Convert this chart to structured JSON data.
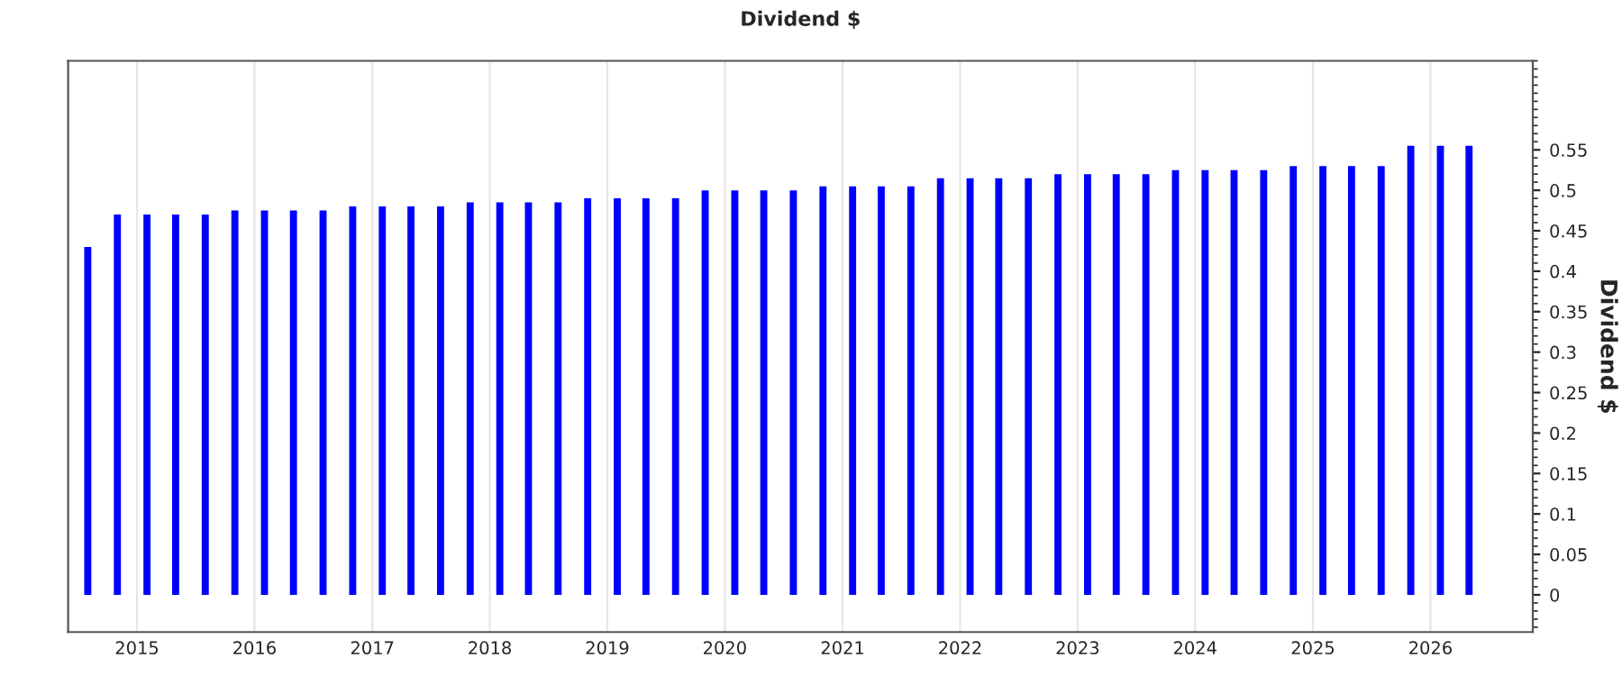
{
  "chart_data": {
    "type": "bar",
    "title": "Dividend $",
    "ylabel": "Dividend $",
    "color": "#0000ff",
    "x": [
      "2014-08",
      "2014-11",
      "2015-02",
      "2015-05",
      "2015-08",
      "2015-11",
      "2016-02",
      "2016-05",
      "2016-08",
      "2016-11",
      "2017-02",
      "2017-05",
      "2017-08",
      "2017-11",
      "2018-02",
      "2018-05",
      "2018-08",
      "2018-11",
      "2019-02",
      "2019-05",
      "2019-08",
      "2019-11",
      "2020-02",
      "2020-05",
      "2020-08",
      "2020-11",
      "2021-02",
      "2021-05",
      "2021-08",
      "2021-11",
      "2022-02",
      "2022-05",
      "2022-08",
      "2022-11",
      "2023-02",
      "2023-05",
      "2023-08",
      "2023-11",
      "2024-02",
      "2024-05",
      "2024-08",
      "2024-11",
      "2025-02",
      "2025-05",
      "2025-08",
      "2025-11",
      "2026-02",
      "2026-05"
    ],
    "values": [
      0.43,
      0.47,
      0.47,
      0.47,
      0.47,
      0.475,
      0.475,
      0.475,
      0.475,
      0.48,
      0.48,
      0.48,
      0.48,
      0.485,
      0.485,
      0.485,
      0.485,
      0.49,
      0.49,
      0.49,
      0.49,
      0.5,
      0.5,
      0.5,
      0.5,
      0.505,
      0.505,
      0.505,
      0.505,
      0.515,
      0.515,
      0.515,
      0.515,
      0.52,
      0.52,
      0.52,
      0.52,
      0.525,
      0.525,
      0.525,
      0.525,
      0.53,
      0.53,
      0.53,
      0.53,
      0.555,
      0.555,
      0.555
    ],
    "xlim": [
      "2014-06-01",
      "2026-11-15"
    ],
    "xticks": [
      {
        "value": "2015",
        "label": "2015"
      },
      {
        "value": "2016",
        "label": "2016"
      },
      {
        "value": "2017",
        "label": "2017"
      },
      {
        "value": "2018",
        "label": "2018"
      },
      {
        "value": "2019",
        "label": "2019"
      },
      {
        "value": "2020",
        "label": "2020"
      },
      {
        "value": "2021",
        "label": "2021"
      },
      {
        "value": "2022",
        "label": "2022"
      },
      {
        "value": "2023",
        "label": "2023"
      },
      {
        "value": "2024",
        "label": "2024"
      },
      {
        "value": "2025",
        "label": "2025"
      },
      {
        "value": "2026",
        "label": "2026"
      }
    ],
    "ylim": [
      -0.046,
      0.66
    ],
    "yticks": [
      0,
      0.05,
      0.1,
      0.15,
      0.2,
      0.25,
      0.3,
      0.35,
      0.4,
      0.45,
      0.5,
      0.55
    ],
    "grid": "x"
  }
}
